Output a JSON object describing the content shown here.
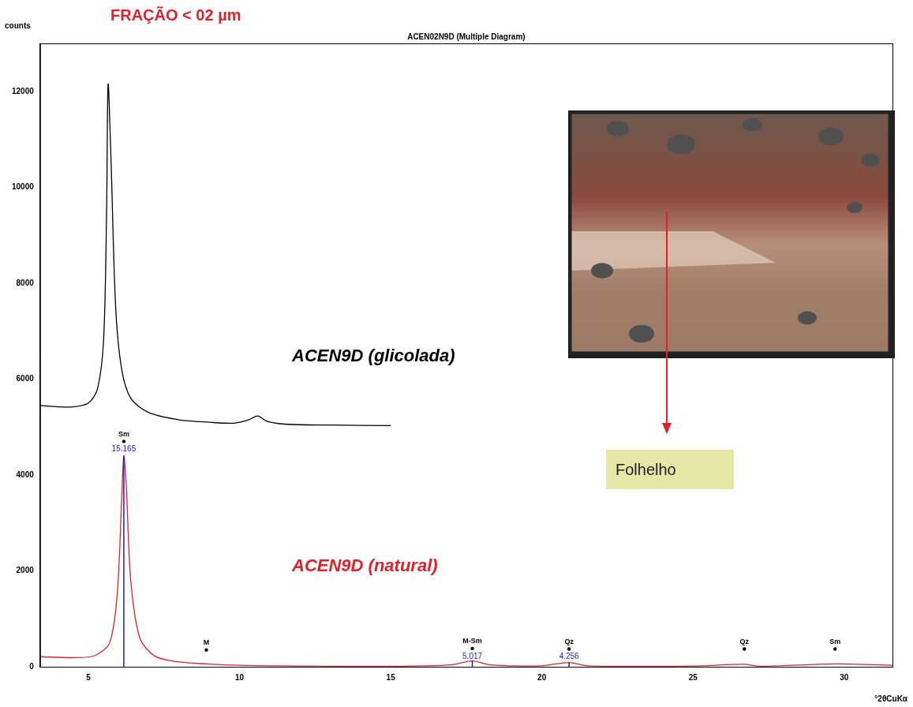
{
  "chart_data": {
    "type": "line",
    "heading": "FRAÇÃO < 02 µm",
    "title": "ACEN02N9D (Multiple Diagram)",
    "ylabel": "counts",
    "xlabel": "°2θCuKα",
    "xlim": [
      3.4,
      31.6
    ],
    "xticks": [
      5,
      10,
      15,
      20,
      25,
      30
    ],
    "ylim": [
      0,
      13000
    ],
    "yticks": [
      0,
      2000,
      4000,
      6000,
      8000,
      10000,
      12000
    ],
    "grid": false,
    "series": [
      {
        "name": "ACEN9D (glicolada)",
        "color": "#000000",
        "x": [
          3.4,
          4.0,
          4.5,
          5.0,
          5.3,
          5.5,
          5.6,
          5.65,
          5.75,
          5.9,
          6.1,
          6.4,
          7.0,
          8.0,
          9.0,
          9.8,
          10.3,
          10.6,
          10.9,
          11.5,
          13.0,
          15.0
        ],
        "values": [
          5450,
          5420,
          5420,
          5500,
          5800,
          6800,
          9500,
          12150,
          10500,
          7500,
          6200,
          5600,
          5300,
          5150,
          5100,
          5080,
          5150,
          5230,
          5120,
          5060,
          5040,
          5030
        ]
      },
      {
        "name": "ACEN9D (natural)",
        "color": "#e0202a",
        "x": [
          3.4,
          4.5,
          5.2,
          5.7,
          5.95,
          6.1,
          6.17,
          6.25,
          6.4,
          6.7,
          7.2,
          8.0,
          8.9,
          10.0,
          12.0,
          15.0,
          17.0,
          17.7,
          18.3,
          20.0,
          20.9,
          21.5,
          25.0,
          26.7,
          27.2,
          29.7,
          31.6
        ],
        "values": [
          210,
          190,
          230,
          500,
          1500,
          3500,
          4400,
          3800,
          1800,
          600,
          220,
          100,
          60,
          30,
          15,
          10,
          40,
          120,
          40,
          20,
          90,
          20,
          15,
          50,
          10,
          60,
          30
        ]
      }
    ],
    "peaks": [
      {
        "label": "Sm",
        "x": 6.17,
        "y": 4700,
        "d": 15.165,
        "stick": 4400
      },
      {
        "label": "M",
        "x": 8.9,
        "y": 350
      },
      {
        "label": "M-Sm",
        "x": 17.7,
        "y": 380,
        "d": 5.017,
        "stick": 120
      },
      {
        "label": "Qz",
        "x": 20.9,
        "y": 370,
        "d": 4.256,
        "stick": 90
      },
      {
        "label": "Qz",
        "x": 26.7,
        "y": 370
      },
      {
        "label": "Sm",
        "x": 29.7,
        "y": 370
      }
    ],
    "photo_caption": "Folhelho"
  }
}
